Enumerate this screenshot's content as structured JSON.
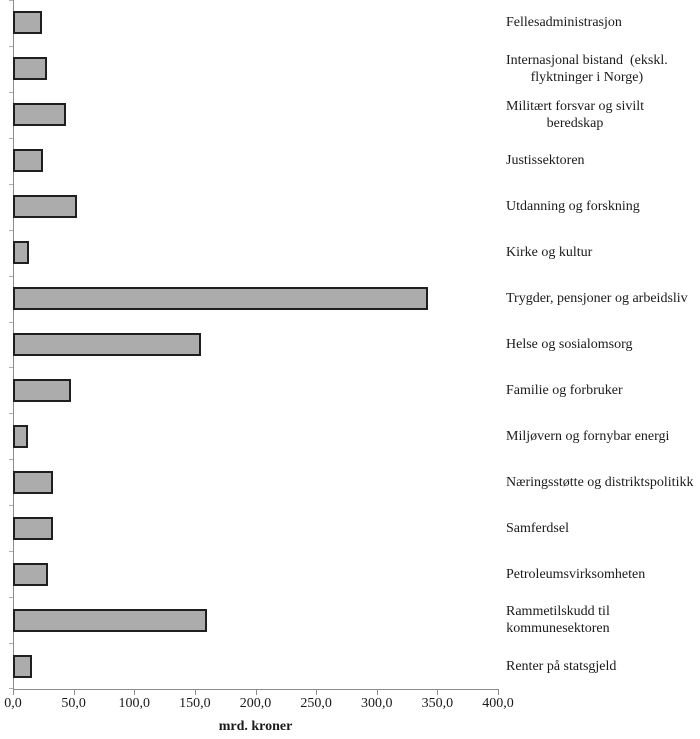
{
  "chart_data": {
    "type": "bar",
    "orientation": "horizontal",
    "title": "",
    "xlabel": "mrd. kroner",
    "ylabel": "",
    "xlim": [
      0,
      400
    ],
    "grid": false,
    "legend": false,
    "x_ticks": [
      "0,0",
      "50,0",
      "100,0",
      "150,0",
      "200,0",
      "250,0",
      "300,0",
      "350,0",
      "400,0"
    ],
    "x_tick_values": [
      0,
      50,
      100,
      150,
      200,
      250,
      300,
      350,
      400
    ],
    "categories": [
      "Fellesadministrasjon",
      "Internasjonal bistand  (ekskl.\nflyktninger i Norge)",
      "Militært forsvar og sivilt\nberedskap",
      "Justissektoren",
      "Utdanning og forskning",
      "Kirke og kultur",
      "Trygder, pensjoner og arbeidsliv",
      "Helse og sosialomsorg",
      "Familie og forbruker",
      "Miljøvern og fornybar energi",
      "Næringsstøtte og distriktspolitikk",
      "Samferdsel",
      "Petroleumsvirksomheten",
      "Rammetilskudd til\nkommunesektoren",
      "Renter på statsgjeld"
    ],
    "values": [
      24,
      28,
      44,
      25,
      53,
      13,
      342,
      155,
      48,
      12,
      33,
      33,
      29,
      160,
      16
    ],
    "colors": {
      "bar_fill": "#acacac",
      "bar_border": "#1f1f1f",
      "axis": "#8c8c8c",
      "tick": "#b0b0b0",
      "text": "#1a1a1a",
      "background": "#ffffff"
    }
  }
}
